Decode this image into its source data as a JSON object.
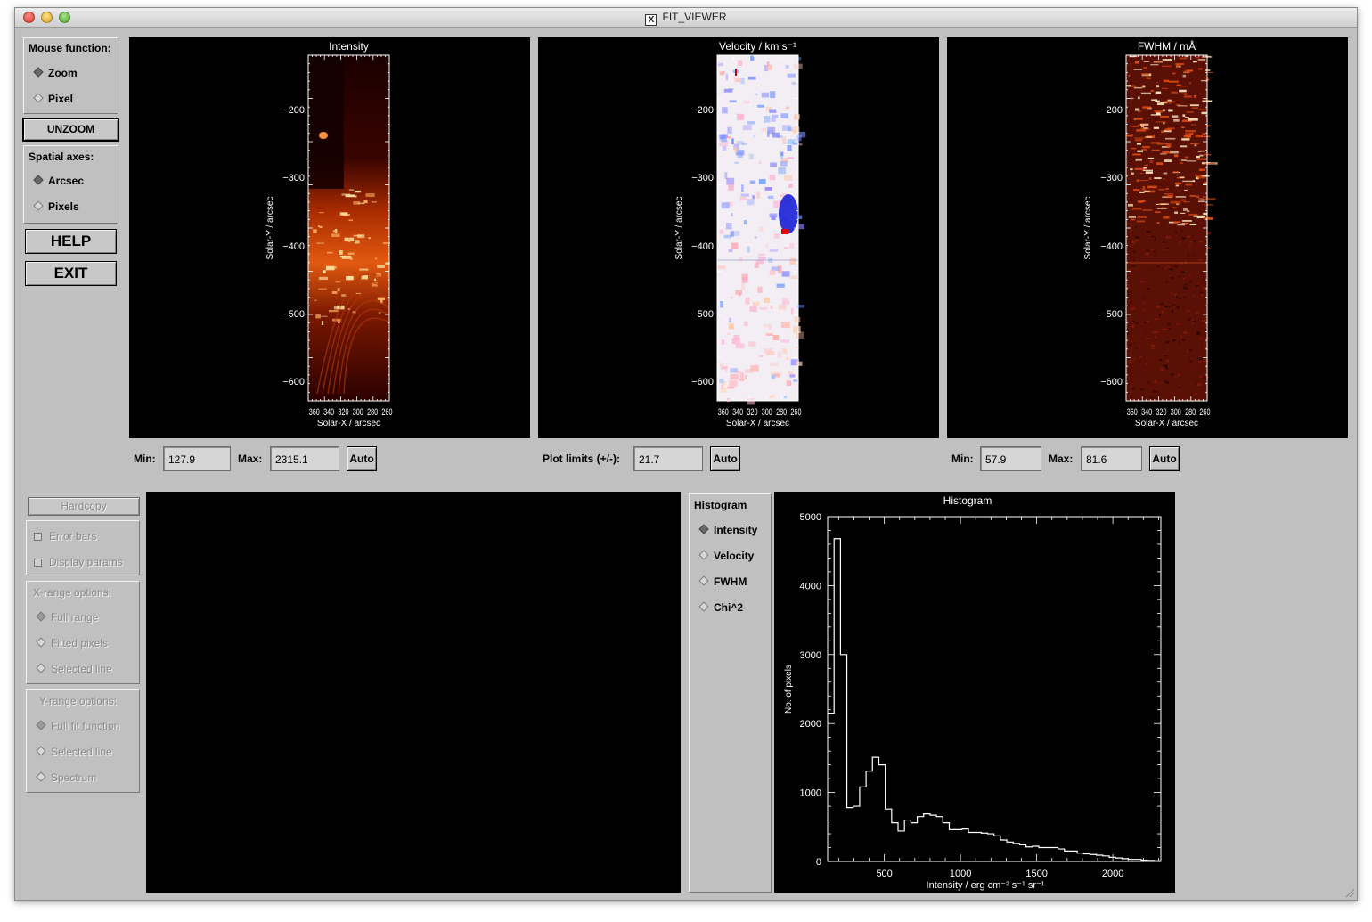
{
  "window": {
    "title": "FIT_VIEWER",
    "title_icon": "x-window-icon"
  },
  "mouse_function": {
    "label": "Mouse function:",
    "options": [
      {
        "label": "Zoom",
        "selected": true
      },
      {
        "label": "Pixel",
        "selected": false
      }
    ]
  },
  "unzoom_label": "UNZOOM",
  "spatial_axes": {
    "label": "Spatial axes:",
    "options": [
      {
        "label": "Arcsec",
        "selected": true
      },
      {
        "label": "Pixels",
        "selected": false
      }
    ]
  },
  "help_label": "HELP",
  "exit_label": "EXIT",
  "image_panels": [
    {
      "title": "Intensity",
      "ylabel": "Solar-Y / arcsec",
      "xlabel": "Solar-X / arcsec",
      "yticks": [
        "-200",
        "-300",
        "-400",
        "-500",
        "-600"
      ],
      "xticks": "−360−340−320−300−280−260"
    },
    {
      "title": "Velocity  /  km s⁻¹",
      "ylabel": "Solar-Y / arcsec",
      "xlabel": "Solar-X / arcsec",
      "yticks": [
        "-200",
        "-300",
        "-400",
        "-500",
        "-600"
      ],
      "xticks": "−360−340−320−300−280−260"
    },
    {
      "title": "FWHM  /  mÅ",
      "ylabel": "Solar-Y / arcsec",
      "xlabel": "Solar-X / arcsec",
      "yticks": [
        "-200",
        "-300",
        "-400",
        "-500",
        "-600"
      ],
      "xticks": "−360−340−320−300−280−260"
    }
  ],
  "intensity_limits": {
    "min_label": "Min:",
    "min_value": "127.9",
    "max_label": "Max:",
    "max_value": "2315.1",
    "auto_label": "Auto"
  },
  "velocity_limits": {
    "label": "Plot limits (+/-):",
    "value": "21.7",
    "auto_label": "Auto"
  },
  "fwhm_limits": {
    "min_label": "Min:",
    "min_value": "57.9",
    "max_label": "Max:",
    "max_value": "81.6",
    "auto_label": "Auto"
  },
  "hardcopy_label": "Hardcopy",
  "display_checks": [
    {
      "label": "Error bars"
    },
    {
      "label": "Display params"
    }
  ],
  "x_range": {
    "label": "X-range options:",
    "options": [
      {
        "label": "Full range",
        "selected": true
      },
      {
        "label": "Fitted pixels",
        "selected": false
      },
      {
        "label": "Selected line",
        "selected": false
      }
    ]
  },
  "y_range": {
    "label": "Y-range options:",
    "options": [
      {
        "label": "Full fit function",
        "selected": true
      },
      {
        "label": "Selected line",
        "selected": false
      },
      {
        "label": "Spectrum",
        "selected": false
      }
    ]
  },
  "histogram_select": {
    "label": "Histogram",
    "options": [
      {
        "label": "Intensity",
        "selected": true
      },
      {
        "label": "Velocity",
        "selected": false
      },
      {
        "label": "FWHM",
        "selected": false
      },
      {
        "label": "Chi^2",
        "selected": false
      }
    ]
  },
  "chart_data": {
    "type": "line",
    "title": "Histogram",
    "xlabel": "Intensity / erg cm⁻² s⁻¹ sr⁻¹",
    "ylabel": "No. of pixels",
    "xlim": [
      127.9,
      2315.1
    ],
    "ylim": [
      0,
      5000
    ],
    "xticks": [
      500,
      1000,
      1500,
      2000
    ],
    "yticks": [
      0,
      1000,
      2000,
      3000,
      4000,
      5000
    ],
    "step": true,
    "x": [
      128,
      170,
      212,
      254,
      296,
      338,
      380,
      422,
      464,
      506,
      548,
      590,
      632,
      674,
      716,
      758,
      800,
      842,
      884,
      926,
      968,
      1010,
      1052,
      1094,
      1136,
      1178,
      1220,
      1262,
      1304,
      1346,
      1388,
      1430,
      1472,
      1514,
      1556,
      1598,
      1640,
      1682,
      1724,
      1766,
      1808,
      1850,
      1892,
      1934,
      1976,
      2018,
      2060,
      2102,
      2144,
      2186,
      2228,
      2270
    ],
    "values": [
      2150,
      4680,
      3000,
      780,
      800,
      1080,
      1310,
      1510,
      1400,
      760,
      560,
      440,
      600,
      560,
      650,
      690,
      670,
      650,
      560,
      460,
      460,
      470,
      420,
      420,
      410,
      400,
      370,
      310,
      280,
      260,
      240,
      210,
      220,
      200,
      200,
      200,
      180,
      150,
      150,
      120,
      110,
      100,
      90,
      80,
      60,
      50,
      40,
      30,
      30,
      20,
      15,
      10
    ]
  }
}
